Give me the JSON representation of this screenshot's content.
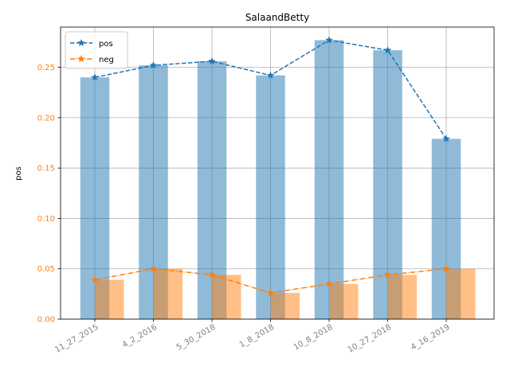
{
  "chart_data": {
    "type": "bar",
    "title": "SalaandBetty",
    "xlabel": "",
    "ylabel": "pos",
    "categories": [
      "11_27_2015",
      "4_2_2016",
      "5_30_2018",
      "1_8_2018",
      "10_8_2018",
      "10_27_2018",
      "4_16_2019"
    ],
    "ylim": [
      0,
      0.29
    ],
    "yticks": [
      0.0,
      0.05,
      0.1,
      0.15,
      0.2,
      0.25
    ],
    "ytick_labels": [
      "0.00",
      "0.05",
      "0.10",
      "0.15",
      "0.20",
      "0.25"
    ],
    "grid": true,
    "legend_position": "top-left",
    "series": [
      {
        "name": "pos",
        "kind": "bar+line",
        "line_style": "dashed",
        "marker": "star",
        "color": "#1f77b4",
        "values": [
          0.24,
          0.252,
          0.256,
          0.242,
          0.277,
          0.267,
          0.179
        ]
      },
      {
        "name": "neg",
        "kind": "bar+line",
        "line_style": "dashdot",
        "marker": "star",
        "color": "#ff7f0e",
        "values": [
          0.039,
          0.05,
          0.044,
          0.026,
          0.035,
          0.044,
          0.05
        ]
      }
    ],
    "tick_label_colors": {
      "x": "#808080",
      "y": "#ff7f0e"
    }
  }
}
